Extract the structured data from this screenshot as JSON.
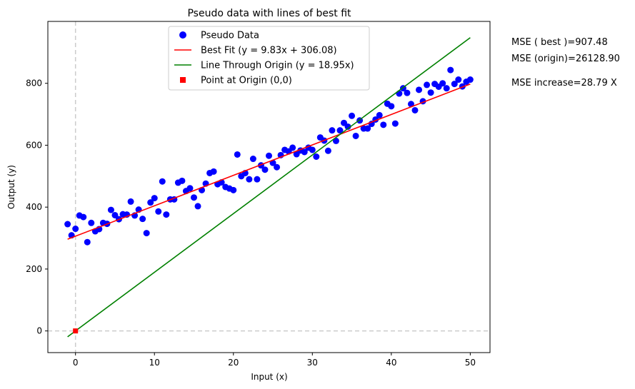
{
  "chart_data": {
    "type": "scatter",
    "title": "Pseudo data with lines of best fit",
    "xlabel": "Input (x)",
    "ylabel": "Output (y)",
    "xlim": [
      -3.5,
      52.5
    ],
    "ylim": [
      -70,
      1000
    ],
    "xticks": [
      0,
      10,
      20,
      30,
      40,
      50
    ],
    "yticks": [
      0,
      200,
      400,
      600,
      800
    ],
    "grid": false,
    "legend_position": "top-center",
    "reference_lines": [
      {
        "orientation": "vertical",
        "value": 0,
        "style": "dashed",
        "color": "#cccccc"
      },
      {
        "orientation": "horizontal",
        "value": 0,
        "style": "dashed",
        "color": "#cccccc"
      }
    ],
    "series": [
      {
        "name": "Pseudo Data",
        "kind": "scatter",
        "color": "#0000ff",
        "points": [
          [
            -1.0,
            345
          ],
          [
            -0.5,
            309
          ],
          [
            0.0,
            330
          ],
          [
            0.5,
            373
          ],
          [
            1.0,
            368
          ],
          [
            1.5,
            287
          ],
          [
            2.0,
            349
          ],
          [
            2.5,
            322
          ],
          [
            3.0,
            329
          ],
          [
            3.5,
            349
          ],
          [
            4.0,
            346
          ],
          [
            4.5,
            391
          ],
          [
            5.0,
            374
          ],
          [
            5.5,
            361
          ],
          [
            6.0,
            377
          ],
          [
            6.5,
            376
          ],
          [
            7.0,
            418
          ],
          [
            7.5,
            373
          ],
          [
            8.0,
            392
          ],
          [
            8.5,
            362
          ],
          [
            9.0,
            316
          ],
          [
            9.5,
            415
          ],
          [
            10.0,
            429
          ],
          [
            10.5,
            386
          ],
          [
            11.0,
            483
          ],
          [
            11.5,
            376
          ],
          [
            12.0,
            425
          ],
          [
            12.5,
            425
          ],
          [
            13.0,
            479
          ],
          [
            13.5,
            485
          ],
          [
            14.0,
            452
          ],
          [
            14.5,
            461
          ],
          [
            15.0,
            431
          ],
          [
            15.5,
            403
          ],
          [
            16.0,
            455
          ],
          [
            16.5,
            476
          ],
          [
            17.0,
            510
          ],
          [
            17.5,
            515
          ],
          [
            18.0,
            474
          ],
          [
            18.5,
            480
          ],
          [
            19.0,
            465
          ],
          [
            19.5,
            460
          ],
          [
            20.0,
            455
          ],
          [
            20.5,
            570
          ],
          [
            21.0,
            500
          ],
          [
            21.5,
            510
          ],
          [
            22.0,
            490
          ],
          [
            22.5,
            556
          ],
          [
            23.0,
            490
          ],
          [
            23.5,
            535
          ],
          [
            24.0,
            521
          ],
          [
            24.5,
            566
          ],
          [
            25.0,
            543
          ],
          [
            25.5,
            529
          ],
          [
            26.0,
            568
          ],
          [
            26.5,
            585
          ],
          [
            27.0,
            580
          ],
          [
            27.5,
            592
          ],
          [
            28.0,
            571
          ],
          [
            28.5,
            583
          ],
          [
            29.0,
            578
          ],
          [
            29.5,
            592
          ],
          [
            30.0,
            585
          ],
          [
            30.5,
            563
          ],
          [
            31.0,
            625
          ],
          [
            31.5,
            615
          ],
          [
            32.0,
            582
          ],
          [
            32.5,
            648
          ],
          [
            33.0,
            614
          ],
          [
            33.5,
            648
          ],
          [
            34.0,
            672
          ],
          [
            34.5,
            660
          ],
          [
            35.0,
            695
          ],
          [
            35.5,
            630
          ],
          [
            36.0,
            680
          ],
          [
            36.5,
            654
          ],
          [
            37.0,
            654
          ],
          [
            37.5,
            669
          ],
          [
            38.0,
            683
          ],
          [
            38.5,
            697
          ],
          [
            39.0,
            666
          ],
          [
            39.5,
            734
          ],
          [
            40.0,
            726
          ],
          [
            40.5,
            670
          ],
          [
            41.0,
            767
          ],
          [
            41.5,
            784
          ],
          [
            42.0,
            769
          ],
          [
            42.5,
            733
          ],
          [
            43.0,
            713
          ],
          [
            43.5,
            779
          ],
          [
            44.0,
            742
          ],
          [
            44.5,
            795
          ],
          [
            45.0,
            770
          ],
          [
            45.5,
            798
          ],
          [
            46.0,
            789
          ],
          [
            46.5,
            800
          ],
          [
            47.0,
            784
          ],
          [
            47.5,
            843
          ],
          [
            48.0,
            798
          ],
          [
            48.5,
            812
          ],
          [
            49.0,
            790
          ],
          [
            49.5,
            805
          ],
          [
            50.0,
            812
          ]
        ]
      },
      {
        "name": "Best Fit (y = 9.83x + 306.08)",
        "kind": "line",
        "color": "#ff0000",
        "x": [
          -1,
          50
        ],
        "y": [
          296.25,
          797.58
        ]
      },
      {
        "name": "Line Through Origin (y = 18.95x)",
        "kind": "line",
        "color": "#008000",
        "x": [
          -1,
          50
        ],
        "y": [
          -18.95,
          947.5
        ]
      },
      {
        "name": "Point at Origin (0,0)",
        "kind": "marker",
        "color": "#ff0000",
        "points": [
          [
            0,
            0
          ]
        ]
      }
    ]
  },
  "annotations": {
    "mse_best": "MSE ( best )=907.48",
    "mse_origin": "MSE (origin)=26128.90",
    "mse_increase": "MSE increase=28.79 X"
  }
}
